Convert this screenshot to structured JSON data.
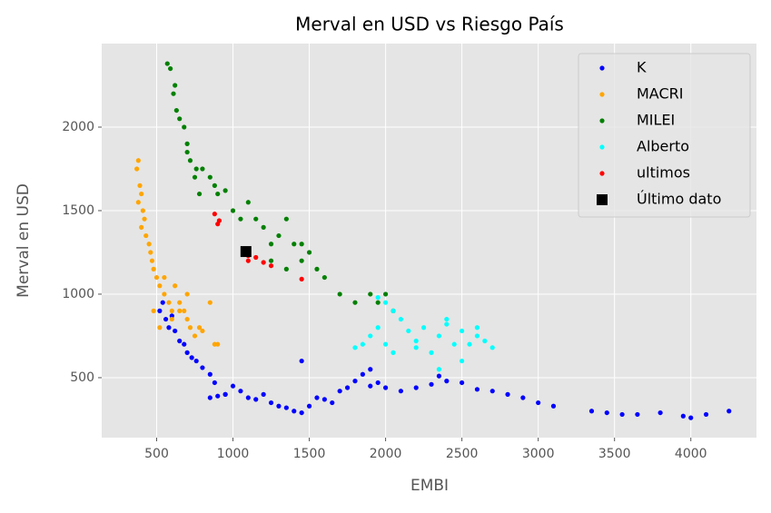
{
  "chart_data": {
    "type": "scatter",
    "title": "Merval en USD vs Riesgo País",
    "x_label": "EMBI",
    "y_label": "Merval en USD",
    "xlim": [
      140,
      4430
    ],
    "ylim": [
      141,
      2500
    ],
    "xticks": [
      500,
      1000,
      1500,
      2000,
      2500,
      3000,
      3500,
      4000
    ],
    "yticks": [
      500,
      1000,
      1500,
      2000
    ],
    "grid": true,
    "legend": "upper right",
    "series": [
      {
        "name": "K",
        "color": "#0000ff",
        "marker": "o",
        "x": [
          520,
          540,
          560,
          580,
          600,
          620,
          650,
          680,
          700,
          730,
          760,
          800,
          850,
          880,
          900,
          950,
          1000,
          1050,
          1100,
          1150,
          1200,
          1250,
          1300,
          1350,
          1400,
          1450,
          1500,
          1550,
          1600,
          1650,
          1700,
          1750,
          1800,
          1850,
          1900,
          1950,
          2000,
          2100,
          2200,
          2300,
          2400,
          2500,
          2600,
          2700,
          2800,
          2900,
          3000,
          3100,
          3350,
          3450,
          3550,
          3650,
          3800,
          3950,
          4000,
          4100,
          4250,
          1450,
          1900,
          2350,
          850,
          950
        ],
        "values": [
          900,
          950,
          850,
          800,
          870,
          780,
          720,
          700,
          650,
          620,
          600,
          560,
          520,
          470,
          390,
          400,
          450,
          420,
          380,
          370,
          400,
          350,
          330,
          320,
          300,
          290,
          330,
          380,
          370,
          350,
          420,
          440,
          480,
          520,
          450,
          470,
          440,
          420,
          440,
          460,
          480,
          470,
          430,
          420,
          400,
          380,
          350,
          330,
          300,
          290,
          280,
          280,
          290,
          270,
          260,
          280,
          300,
          600,
          550,
          510,
          380,
          400
        ]
      },
      {
        "name": "MACRI",
        "color": "#ffa500",
        "marker": "o",
        "x": [
          370,
          380,
          390,
          400,
          380,
          410,
          420,
          400,
          430,
          450,
          460,
          470,
          480,
          500,
          520,
          550,
          580,
          600,
          620,
          650,
          680,
          700,
          720,
          750,
          780,
          800,
          850,
          880,
          900,
          480,
          520,
          600,
          700,
          550,
          650
        ],
        "values": [
          1750,
          1800,
          1650,
          1600,
          1550,
          1500,
          1450,
          1400,
          1350,
          1300,
          1250,
          1200,
          1150,
          1100,
          1050,
          1000,
          950,
          900,
          1050,
          950,
          900,
          850,
          800,
          750,
          800,
          780,
          950,
          700,
          700,
          900,
          800,
          850,
          1000,
          1100,
          900
        ]
      },
      {
        "name": "MILEI",
        "color": "#008000",
        "marker": "o",
        "x": [
          570,
          590,
          610,
          630,
          650,
          680,
          700,
          720,
          750,
          780,
          800,
          850,
          900,
          950,
          1000,
          1050,
          1100,
          1150,
          1200,
          1250,
          1300,
          1350,
          1400,
          1450,
          1500,
          1550,
          1600,
          1700,
          1800,
          1900,
          1950,
          2000,
          2050,
          1350,
          1250,
          1450,
          620,
          700,
          760,
          880
        ],
        "values": [
          2380,
          2350,
          2200,
          2100,
          2050,
          2000,
          1850,
          1800,
          1700,
          1600,
          1750,
          1700,
          1600,
          1620,
          1500,
          1450,
          1550,
          1450,
          1400,
          1300,
          1350,
          1450,
          1300,
          1200,
          1250,
          1150,
          1100,
          1000,
          950,
          1000,
          950,
          1000,
          900,
          1150,
          1200,
          1300,
          2250,
          1900,
          1750,
          1650
        ]
      },
      {
        "name": "Alberto",
        "color": "#00ffff",
        "marker": "o",
        "x": [
          1800,
          1850,
          1900,
          1950,
          2000,
          2050,
          2100,
          2150,
          2200,
          2250,
          2300,
          2350,
          2400,
          2450,
          2500,
          2550,
          2600,
          2650,
          2700,
          1950,
          2050,
          2350,
          2500,
          2200,
          2400,
          2600,
          2000
        ],
        "values": [
          680,
          700,
          750,
          800,
          950,
          900,
          850,
          780,
          720,
          800,
          650,
          750,
          850,
          700,
          780,
          700,
          750,
          720,
          680,
          980,
          650,
          550,
          600,
          680,
          820,
          800,
          700
        ]
      },
      {
        "name": "ultimos",
        "color": "#ff0000",
        "marker": "o",
        "x": [
          880,
          900,
          910,
          1100,
          1150,
          1200,
          1250,
          1100,
          1450
        ],
        "values": [
          1480,
          1420,
          1440,
          1200,
          1220,
          1190,
          1170,
          1230,
          1090
        ]
      },
      {
        "name": "Último dato",
        "color": "#000000",
        "marker": "s",
        "x": [
          1085
        ],
        "values": [
          1255
        ]
      }
    ]
  }
}
